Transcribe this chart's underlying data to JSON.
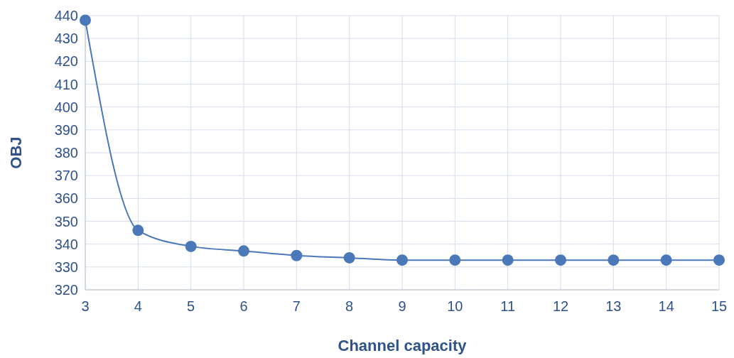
{
  "chart_data": {
    "type": "line",
    "xlabel": "Channel capacity",
    "ylabel": "OBJ",
    "x": [
      3,
      4,
      5,
      6,
      7,
      8,
      9,
      10,
      11,
      12,
      13,
      14,
      15
    ],
    "series": [
      {
        "color": "#4a78b8",
        "values": [
          438,
          346,
          339,
          337,
          335,
          334,
          333,
          333,
          333,
          333,
          333,
          333,
          333
        ]
      }
    ],
    "xlim": [
      3,
      15
    ],
    "xticks": [
      3,
      4,
      5,
      6,
      7,
      8,
      9,
      10,
      11,
      12,
      13,
      14,
      15
    ],
    "ylim": [
      320,
      440
    ],
    "yticks": [
      320,
      330,
      340,
      350,
      360,
      370,
      380,
      390,
      400,
      410,
      420,
      430,
      440
    ],
    "grid": true,
    "marker": "circle",
    "line_style": "solid"
  }
}
